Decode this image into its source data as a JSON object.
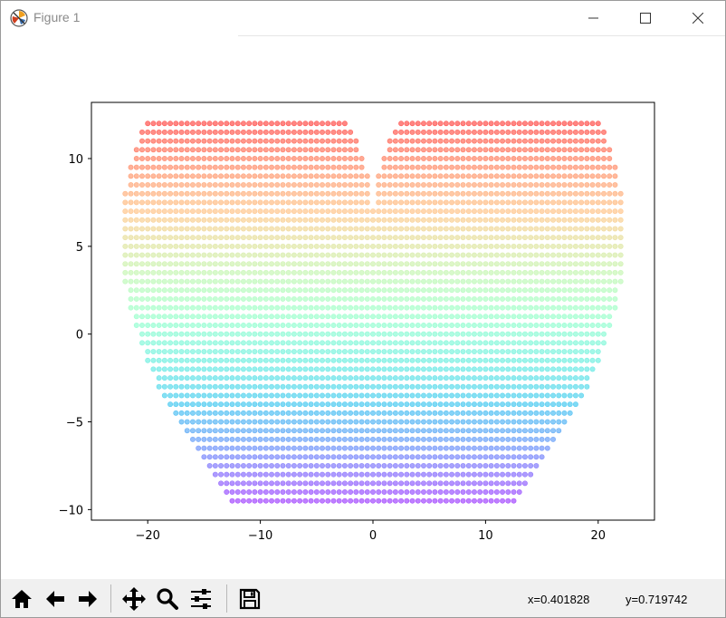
{
  "window": {
    "title": "Figure 1",
    "icon": "matplotlib-icon",
    "controls": [
      "minimize-icon",
      "maximize-icon",
      "close-icon"
    ]
  },
  "toolbar": {
    "buttons": [
      "home-icon",
      "back-arrow-icon",
      "forward-arrow-icon",
      "pan-icon",
      "zoom-icon",
      "configure-subplots-icon",
      "save-icon"
    ],
    "coords": {
      "x": "x=0.401828",
      "y": "y=0.719742"
    }
  },
  "chart_data": {
    "type": "scatter",
    "title": "",
    "xlabel": "",
    "ylabel": "",
    "xlim": [
      -25,
      25
    ],
    "ylim": [
      -10.6,
      13.2
    ],
    "xticks": [
      -20,
      -10,
      0,
      10,
      20
    ],
    "yticks": [
      -10,
      -5,
      0,
      5,
      10
    ],
    "xtick_labels": [
      "−20",
      "−10",
      "0",
      "10",
      "20"
    ],
    "ytick_labels": [
      "−10",
      "−5",
      "0",
      "5",
      "10"
    ],
    "grid": false,
    "legend": "none",
    "colormap": "rainbow",
    "color_by": "y",
    "alpha": 0.5,
    "shape": "heart",
    "heart": {
      "x_equation": "16*sin(t)^3",
      "y_equation": "13*cos(t)-5*cos(2t)-2*cos(3t)-cos(4t)",
      "scale": 1.4,
      "grid_step": 0.5
    }
  }
}
